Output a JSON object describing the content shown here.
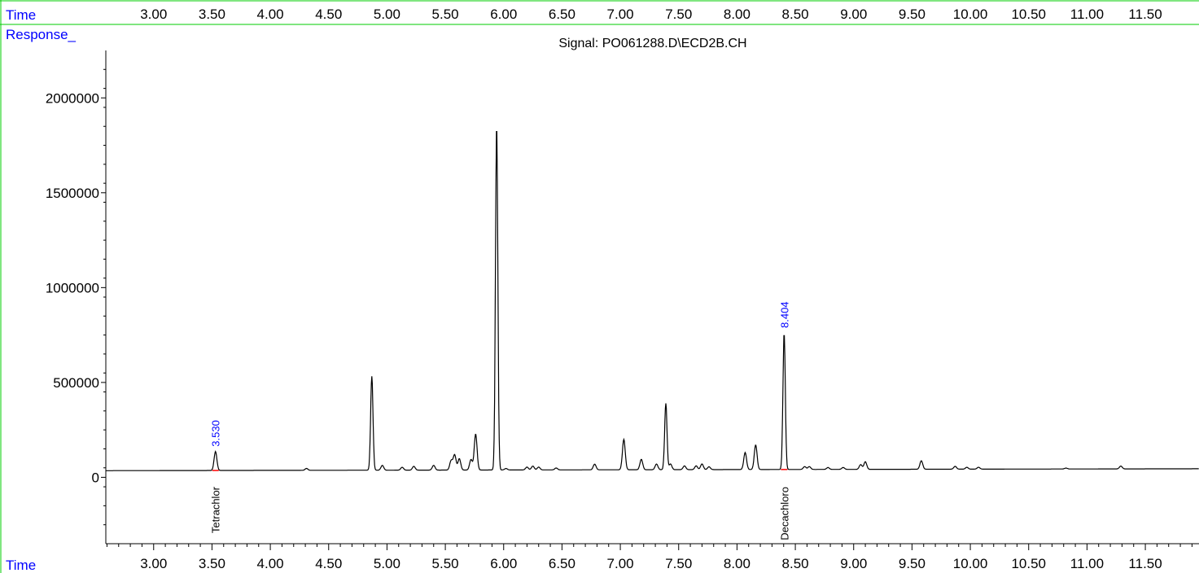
{
  "header": {
    "time_label": "Time"
  },
  "footer": {
    "time_label": "Time"
  },
  "colors": {
    "accent": "#0000ff",
    "frame": "#00cc00",
    "trace": "#000000",
    "baseline_marker": "#ff0000"
  },
  "chart_data": {
    "type": "line",
    "title": "Signal: PO061288.D\\ECD2B.CH",
    "ylabel": "Response_",
    "xlabel": "Time",
    "xlim": [
      2.59,
      11.96
    ],
    "ylim": [
      -350000,
      2250000
    ],
    "x_ticks": [
      "3.00",
      "3.50",
      "4.00",
      "4.50",
      "5.00",
      "5.50",
      "6.00",
      "6.50",
      "7.00",
      "7.50",
      "8.00",
      "8.50",
      "9.00",
      "9.50",
      "10.00",
      "10.50",
      "11.00",
      "11.50"
    ],
    "y_ticks": [
      "0",
      "500000",
      "1000000",
      "1500000",
      "2000000"
    ],
    "baseline": {
      "start": 35000,
      "end": 45000
    },
    "peaks": [
      {
        "x": 3.53,
        "y": 100000,
        "label": "3.530",
        "compound": "Tetrachlor"
      },
      {
        "x": 4.31,
        "y": 10000
      },
      {
        "x": 4.87,
        "y": 495000
      },
      {
        "x": 4.96,
        "y": 25000
      },
      {
        "x": 5.13,
        "y": 15000
      },
      {
        "x": 5.23,
        "y": 20000
      },
      {
        "x": 5.4,
        "y": 25000
      },
      {
        "x": 5.55,
        "y": 50000
      },
      {
        "x": 5.58,
        "y": 80000
      },
      {
        "x": 5.62,
        "y": 60000
      },
      {
        "x": 5.72,
        "y": 55000
      },
      {
        "x": 5.76,
        "y": 190000
      },
      {
        "x": 5.94,
        "y": 1820000
      },
      {
        "x": 6.02,
        "y": 8000
      },
      {
        "x": 6.2,
        "y": 15000
      },
      {
        "x": 6.25,
        "y": 20000
      },
      {
        "x": 6.3,
        "y": 15000
      },
      {
        "x": 6.45,
        "y": 10000
      },
      {
        "x": 6.78,
        "y": 30000
      },
      {
        "x": 7.03,
        "y": 160000
      },
      {
        "x": 7.18,
        "y": 55000
      },
      {
        "x": 7.31,
        "y": 30000
      },
      {
        "x": 7.39,
        "y": 350000
      },
      {
        "x": 7.43,
        "y": 30000
      },
      {
        "x": 7.55,
        "y": 20000
      },
      {
        "x": 7.65,
        "y": 20000
      },
      {
        "x": 7.7,
        "y": 30000
      },
      {
        "x": 7.76,
        "y": 15000
      },
      {
        "x": 8.07,
        "y": 90000
      },
      {
        "x": 8.16,
        "y": 130000
      },
      {
        "x": 8.404,
        "y": 720000,
        "label": "8.404",
        "compound": "Decachloro"
      },
      {
        "x": 8.58,
        "y": 15000
      },
      {
        "x": 8.62,
        "y": 15000
      },
      {
        "x": 8.78,
        "y": 10000
      },
      {
        "x": 8.91,
        "y": 10000
      },
      {
        "x": 9.06,
        "y": 25000
      },
      {
        "x": 9.1,
        "y": 40000
      },
      {
        "x": 9.58,
        "y": 45000
      },
      {
        "x": 9.87,
        "y": 15000
      },
      {
        "x": 9.97,
        "y": 10000
      },
      {
        "x": 10.07,
        "y": 10000
      },
      {
        "x": 10.82,
        "y": 5000
      },
      {
        "x": 11.29,
        "y": 15000
      }
    ],
    "grid": false
  }
}
